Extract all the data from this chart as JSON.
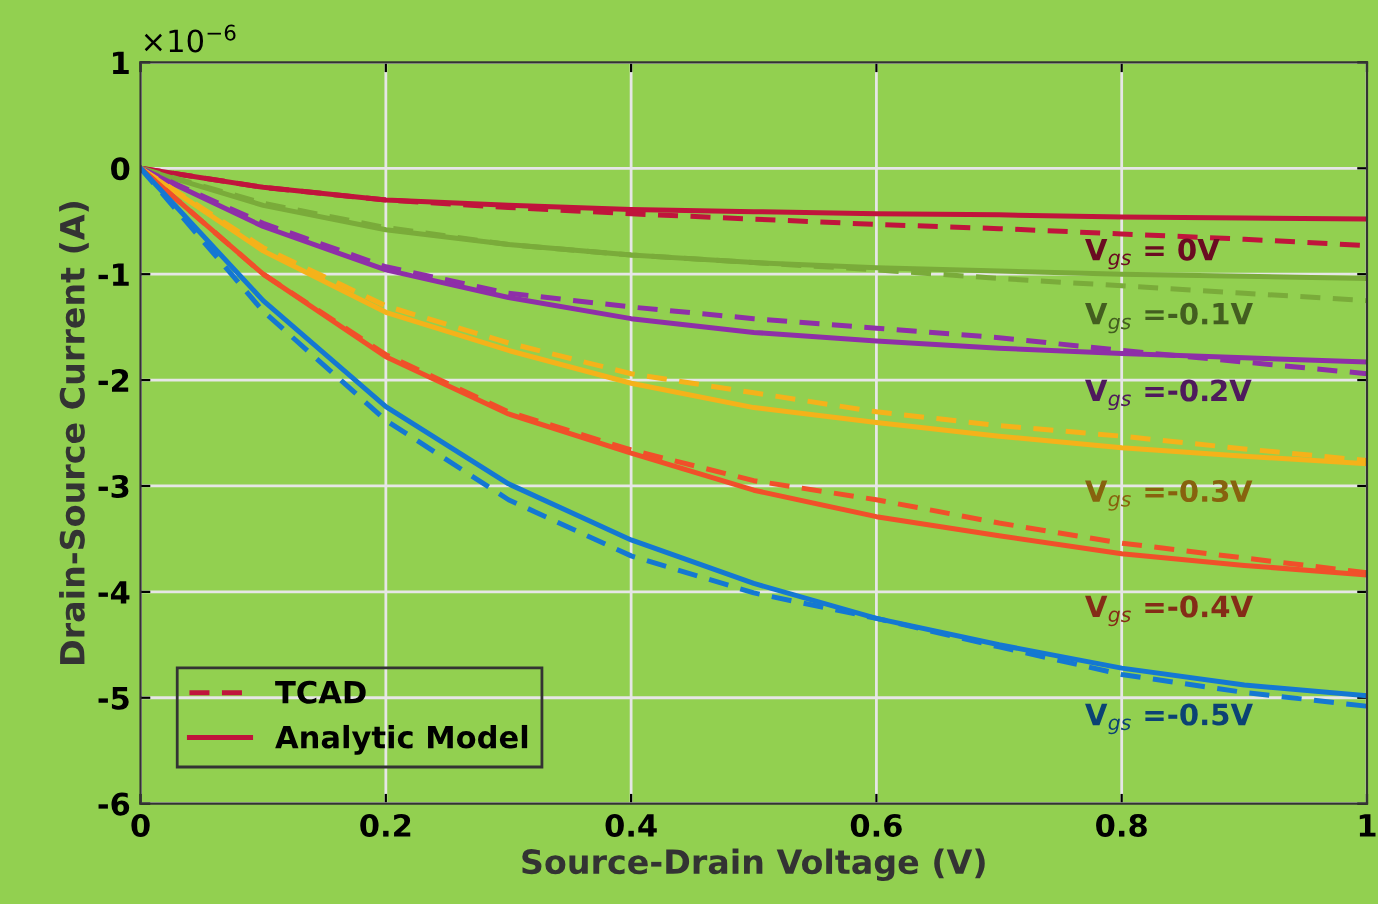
{
  "chart_data": {
    "type": "line",
    "xlabel": "Source-Drain Voltage (V)",
    "ylabel": "Drain-Source Current (A)",
    "x": [
      0,
      0.1,
      0.2,
      0.3,
      0.4,
      0.5,
      0.6,
      0.7,
      0.8,
      0.9,
      1
    ],
    "series": [
      {
        "name": "TCAD",
        "color": "#c0143c",
        "line_style": "dashed",
        "values": [
          0,
          -0.18,
          -0.3,
          -0.37,
          -0.43,
          -0.48,
          -0.53,
          -0.57,
          -0.62,
          -0.67,
          -0.73
        ]
      },
      {
        "name": "Analytic Model",
        "color": "#c0143c",
        "line_style": "solid",
        "values": [
          0,
          -0.18,
          -0.3,
          -0.35,
          -0.39,
          -0.41,
          -0.43,
          -0.44,
          -0.46,
          -0.47,
          -0.48
        ]
      },
      {
        "color": "#7aab3a",
        "line_style": "dashed",
        "values": [
          0,
          -0.33,
          -0.56,
          -0.72,
          -0.82,
          -0.89,
          -0.96,
          -1.04,
          -1.11,
          -1.18,
          -1.25
        ]
      },
      {
        "color": "#7aab3a",
        "line_style": "solid",
        "values": [
          0,
          -0.35,
          -0.58,
          -0.72,
          -0.82,
          -0.89,
          -0.94,
          -0.97,
          -1.0,
          -1.02,
          -1.04
        ]
      },
      {
        "color": "#8e2fa8",
        "line_style": "dashed",
        "values": [
          0,
          -0.52,
          -0.93,
          -1.18,
          -1.31,
          -1.42,
          -1.51,
          -1.6,
          -1.72,
          -1.83,
          -1.94
        ]
      },
      {
        "color": "#8e2fa8",
        "line_style": "solid",
        "values": [
          0,
          -0.55,
          -0.96,
          -1.22,
          -1.42,
          -1.55,
          -1.63,
          -1.7,
          -1.75,
          -1.79,
          -1.83
        ]
      },
      {
        "color": "#f5b21a",
        "line_style": "dashed",
        "values": [
          0,
          -0.75,
          -1.3,
          -1.65,
          -1.94,
          -2.12,
          -2.3,
          -2.43,
          -2.53,
          -2.65,
          -2.76
        ]
      },
      {
        "color": "#f5b21a",
        "line_style": "solid",
        "values": [
          0,
          -0.78,
          -1.36,
          -1.72,
          -2.03,
          -2.26,
          -2.4,
          -2.53,
          -2.64,
          -2.72,
          -2.79
        ]
      },
      {
        "color": "#f0502a",
        "line_style": "dashed",
        "values": [
          0,
          -1.0,
          -1.76,
          -2.3,
          -2.66,
          -2.95,
          -3.13,
          -3.35,
          -3.54,
          -3.68,
          -3.82
        ]
      },
      {
        "color": "#f0502a",
        "line_style": "solid",
        "values": [
          0,
          -1.0,
          -1.78,
          -2.32,
          -2.69,
          -3.04,
          -3.29,
          -3.47,
          -3.64,
          -3.75,
          -3.84
        ]
      },
      {
        "color": "#1478d2",
        "line_style": "dashed",
        "values": [
          0,
          -1.35,
          -2.38,
          -3.13,
          -3.66,
          -4.01,
          -4.25,
          -4.52,
          -4.78,
          -4.95,
          -5.08
        ]
      },
      {
        "color": "#1478d2",
        "line_style": "solid",
        "values": [
          0,
          -1.25,
          -2.25,
          -2.98,
          -3.51,
          -3.92,
          -4.25,
          -4.5,
          -4.72,
          -4.88,
          -4.98
        ]
      }
    ],
    "annotations": [
      "V$_{gs}$ = 0V",
      "V$_{gs}$ =-0.1V",
      "V$_{gs}$ =-0.2V",
      "V$_{gs}$ =-0.3V",
      "V$_{gs}$ =-0.4V",
      "V$_{gs}$ =-0.5V",
      "×10$^{−6}$"
    ],
    "xlim": [
      0,
      1
    ],
    "xticks": [
      0,
      0.2,
      0.4,
      0.6,
      0.8,
      1
    ],
    "ylim": [
      -6,
      1
    ],
    "yticks": [
      1,
      0,
      -1,
      -2,
      -3,
      -4,
      -5,
      -6
    ],
    "grid": true,
    "legend": "bottom left",
    "marker": "none"
  }
}
